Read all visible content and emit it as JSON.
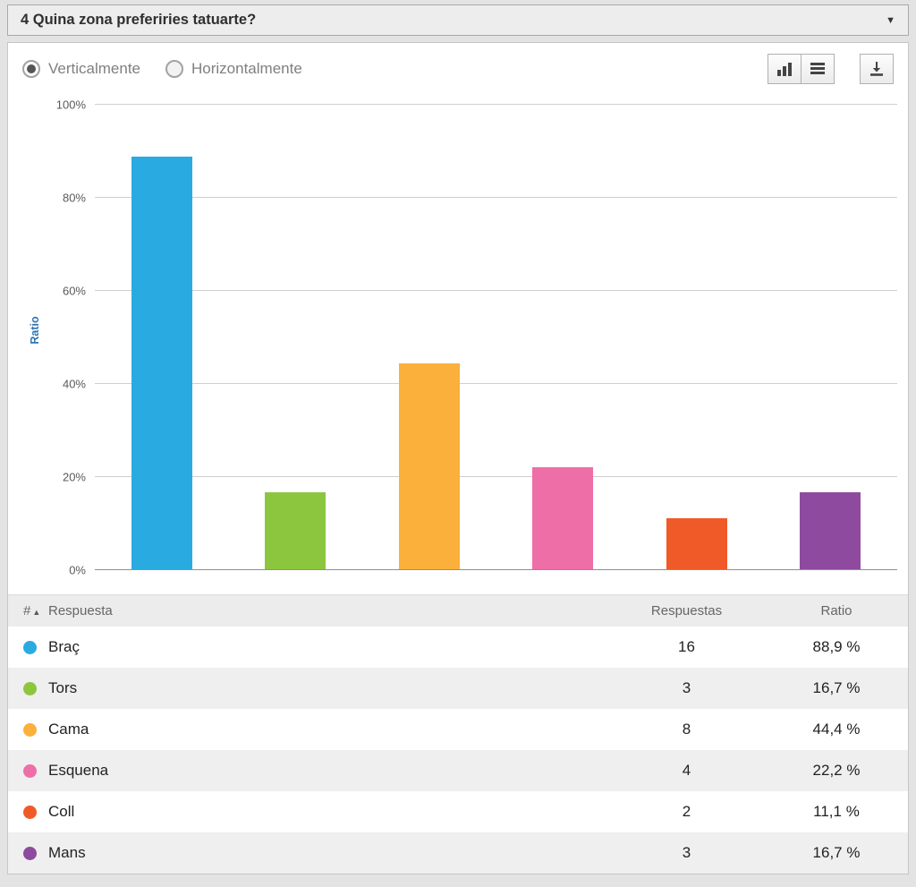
{
  "header": {
    "title": "4 Quina zona preferiries tatuarte?"
  },
  "icons": {
    "collapse": "▼",
    "sort_asc": "▲"
  },
  "controls": {
    "orientation_radios": [
      {
        "label": "Verticalmente",
        "selected": true
      },
      {
        "label": "Horizontalmente",
        "selected": false
      }
    ],
    "view_buttons": [
      {
        "name": "bar-chart-view"
      },
      {
        "name": "table-view"
      }
    ],
    "download_button": {
      "name": "download"
    }
  },
  "chart_data": {
    "type": "bar",
    "title": "",
    "xlabel": "",
    "ylabel": "Ratio",
    "ylim": [
      0,
      100
    ],
    "yticks": [
      "0%",
      "20%",
      "40%",
      "60%",
      "80%",
      "100%"
    ],
    "categories": [
      "Braç",
      "Tors",
      "Cama",
      "Esquena",
      "Coll",
      "Mans"
    ],
    "values": [
      88.9,
      16.7,
      44.4,
      22.2,
      11.1,
      16.7
    ],
    "colors": [
      "#29abe2",
      "#8cc63f",
      "#fbb03b",
      "#ee6ea8",
      "#f05a28",
      "#8e4a9e"
    ],
    "grid": true,
    "legend": false
  },
  "table": {
    "headers": {
      "index": "#",
      "answer": "Respuesta",
      "responses": "Respuestas",
      "ratio": "Ratio"
    },
    "rows": [
      {
        "color": "#29abe2",
        "answer": "Braç",
        "responses": "16",
        "ratio": "88,9 %"
      },
      {
        "color": "#8cc63f",
        "answer": "Tors",
        "responses": "3",
        "ratio": "16,7 %"
      },
      {
        "color": "#fbb03b",
        "answer": "Cama",
        "responses": "8",
        "ratio": "44,4 %"
      },
      {
        "color": "#ee6ea8",
        "answer": "Esquena",
        "responses": "4",
        "ratio": "22,2 %"
      },
      {
        "color": "#f05a28",
        "answer": "Coll",
        "responses": "2",
        "ratio": "11,1 %"
      },
      {
        "color": "#8e4a9e",
        "answer": "Mans",
        "responses": "3",
        "ratio": "16,7 %"
      }
    ]
  }
}
